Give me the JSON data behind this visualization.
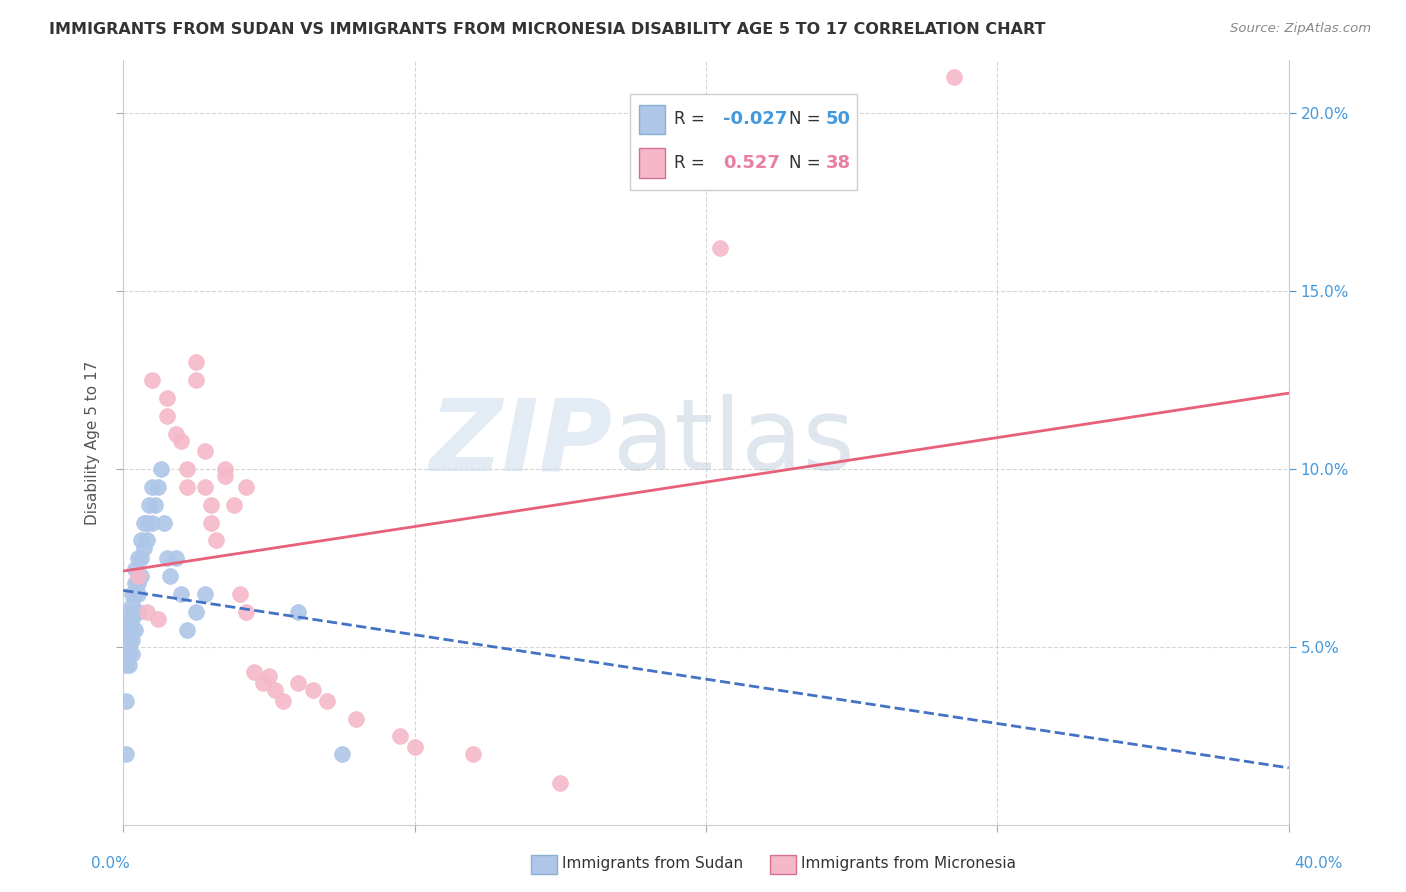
{
  "title": "IMMIGRANTS FROM SUDAN VS IMMIGRANTS FROM MICRONESIA DISABILITY AGE 5 TO 17 CORRELATION CHART",
  "source": "Source: ZipAtlas.com",
  "ylabel": "Disability Age 5 to 17",
  "xlim": [
    0.0,
    0.4
  ],
  "ylim": [
    0.0,
    0.215
  ],
  "x_ticks": [
    0.0,
    0.1,
    0.2,
    0.3,
    0.4
  ],
  "y_ticks": [
    0.05,
    0.1,
    0.15,
    0.2
  ],
  "y_tick_labels_right": [
    "5.0%",
    "10.0%",
    "15.0%",
    "20.0%"
  ],
  "sudan_color": "#aec6e8",
  "micronesia_color": "#f5b8c8",
  "sudan_line_color": "#4472c4",
  "micronesia_line_color": "#e8607a",
  "sudan_R": -0.027,
  "sudan_N": 50,
  "micronesia_R": 0.527,
  "micronesia_N": 38,
  "sudan_scatter_x": [
    0.001,
    0.001,
    0.001,
    0.001,
    0.001,
    0.002,
    0.002,
    0.002,
    0.002,
    0.002,
    0.002,
    0.002,
    0.003,
    0.003,
    0.003,
    0.003,
    0.003,
    0.003,
    0.004,
    0.004,
    0.004,
    0.004,
    0.004,
    0.005,
    0.005,
    0.005,
    0.005,
    0.006,
    0.006,
    0.006,
    0.007,
    0.007,
    0.008,
    0.008,
    0.009,
    0.01,
    0.01,
    0.011,
    0.012,
    0.013,
    0.014,
    0.015,
    0.016,
    0.018,
    0.02,
    0.022,
    0.025,
    0.028,
    0.06,
    0.075
  ],
  "sudan_scatter_y": [
    0.02,
    0.035,
    0.045,
    0.05,
    0.055,
    0.045,
    0.048,
    0.05,
    0.052,
    0.055,
    0.058,
    0.06,
    0.048,
    0.052,
    0.055,
    0.058,
    0.062,
    0.065,
    0.055,
    0.06,
    0.065,
    0.068,
    0.072,
    0.06,
    0.065,
    0.068,
    0.075,
    0.07,
    0.075,
    0.08,
    0.078,
    0.085,
    0.08,
    0.085,
    0.09,
    0.085,
    0.095,
    0.09,
    0.095,
    0.1,
    0.085,
    0.075,
    0.07,
    0.075,
    0.065,
    0.055,
    0.06,
    0.065,
    0.06,
    0.02
  ],
  "micronesia_scatter_x": [
    0.005,
    0.008,
    0.01,
    0.012,
    0.015,
    0.015,
    0.018,
    0.02,
    0.022,
    0.022,
    0.025,
    0.025,
    0.028,
    0.028,
    0.03,
    0.03,
    0.032,
    0.035,
    0.035,
    0.038,
    0.04,
    0.042,
    0.042,
    0.045,
    0.048,
    0.05,
    0.052,
    0.055,
    0.06,
    0.065,
    0.07,
    0.08,
    0.095,
    0.1,
    0.12,
    0.15,
    0.205,
    0.285
  ],
  "micronesia_scatter_y": [
    0.07,
    0.06,
    0.125,
    0.058,
    0.12,
    0.115,
    0.11,
    0.108,
    0.1,
    0.095,
    0.125,
    0.13,
    0.095,
    0.105,
    0.09,
    0.085,
    0.08,
    0.098,
    0.1,
    0.09,
    0.065,
    0.06,
    0.095,
    0.043,
    0.04,
    0.042,
    0.038,
    0.035,
    0.04,
    0.038,
    0.035,
    0.03,
    0.025,
    0.022,
    0.02,
    0.012,
    0.162,
    0.21
  ],
  "watermark_zip": "ZIP",
  "watermark_atlas": "atlas",
  "background_color": "#ffffff",
  "grid_color": "#cccccc",
  "legend_sudan_text": [
    "R = ",
    "-0.027",
    "  N = ",
    "50"
  ],
  "legend_micro_text": [
    "R =  ",
    "0.527",
    "  N = ",
    "38"
  ],
  "bottom_label_sudan": "Immigrants from Sudan",
  "bottom_label_micro": "Immigrants from Micronesia"
}
